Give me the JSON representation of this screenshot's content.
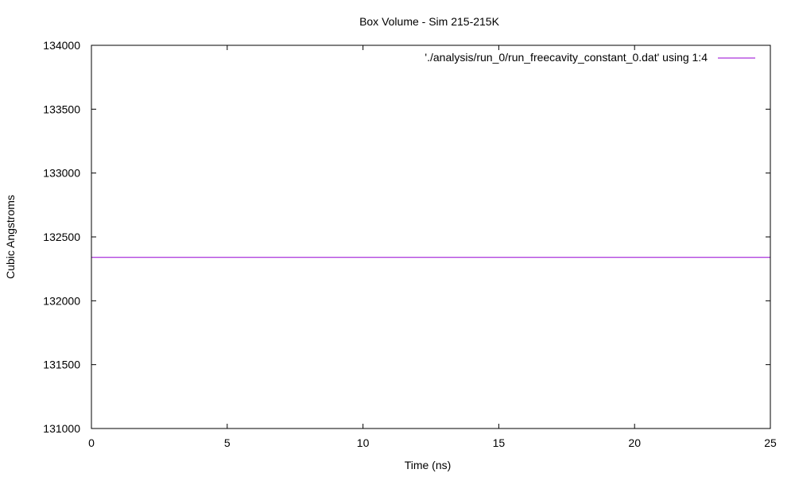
{
  "chart_data": {
    "type": "line",
    "title": "Box Volume - Sim 215-215K",
    "xlabel": "Time (ns)",
    "ylabel": "Cubic Angstroms",
    "xlim": [
      0,
      25
    ],
    "ylim": [
      131000,
      134000
    ],
    "x_ticks": [
      0,
      5,
      10,
      15,
      20,
      25
    ],
    "y_ticks": [
      131000,
      131500,
      132000,
      132500,
      133000,
      133500,
      134000
    ],
    "grid": false,
    "legend_position": "top-right",
    "series": [
      {
        "name": "'./analysis/run_0/run_freecavity_constant_0.dat' using 1:4",
        "color": "#9400d3",
        "x": [
          0,
          25
        ],
        "y": [
          132340,
          132340
        ]
      }
    ]
  }
}
